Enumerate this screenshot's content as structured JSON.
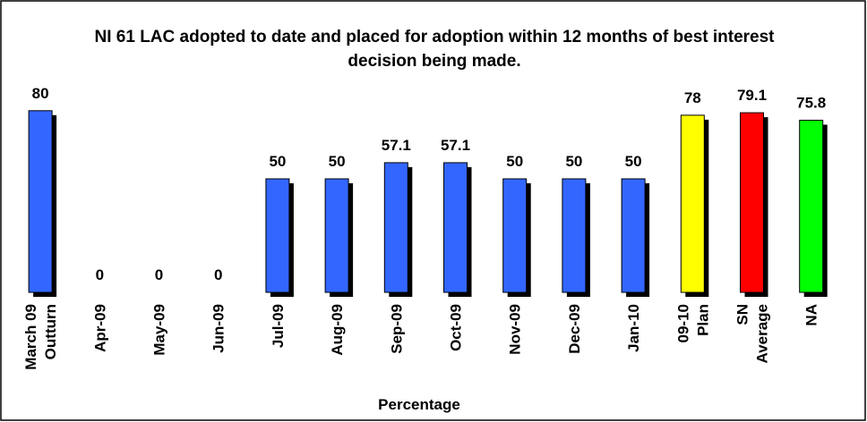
{
  "chart_data": {
    "type": "bar",
    "title": "NI 61 LAC adopted to date and placed for adoption within 12 months of best interest decision being made.",
    "x_label": "Percentage",
    "categories": [
      "March 09 Outturn",
      "Apr-09",
      "May-09",
      "Jun-09",
      "Jul-09",
      "Aug-09",
      "Sep-09",
      "Oct-09",
      "Nov-09",
      "Dec-09",
      "Jan-10",
      "09-10 Plan",
      "SN Average",
      "NA"
    ],
    "values": [
      80,
      0,
      0,
      0,
      50,
      50,
      57.1,
      57.1,
      50,
      50,
      50,
      78,
      79.1,
      75.8
    ],
    "colors": [
      "#3366ff",
      "#3366ff",
      "#3366ff",
      "#3366ff",
      "#3366ff",
      "#3366ff",
      "#3366ff",
      "#3366ff",
      "#3366ff",
      "#3366ff",
      "#3366ff",
      "#ffff00",
      "#ff0000",
      "#00ff00"
    ],
    "ylim": [
      0,
      100
    ]
  }
}
